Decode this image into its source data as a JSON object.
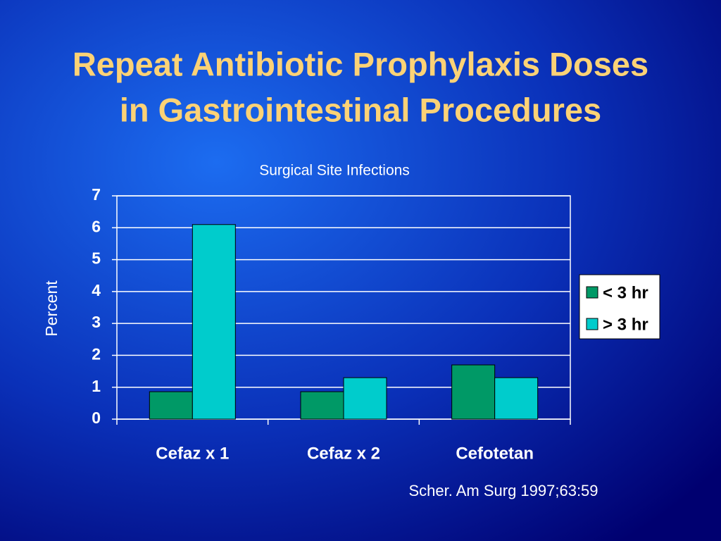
{
  "chart_data": {
    "type": "bar",
    "title": [
      "Repeat Antibiotic Prophylaxis Doses",
      "in Gastrointestinal Procedures"
    ],
    "subtitle": "Surgical Site Infections",
    "y_label": "Percent",
    "annotation": "Scher. Am Surg 1997;63:59",
    "categories": [
      "Cefaz x 1",
      "Cefaz x 2",
      "Cefotetan"
    ],
    "series": [
      {
        "name": "< 3 hr",
        "color": "#009966",
        "values": [
          0.86,
          0.86,
          1.7
        ]
      },
      {
        "name": "> 3 hr",
        "color": "#00cccc",
        "values": [
          6.1,
          1.3,
          1.3
        ]
      }
    ],
    "ylim": [
      0,
      7
    ],
    "yticks": [
      0,
      1,
      2,
      3,
      4,
      5,
      6,
      7
    ],
    "grid": true,
    "legend": "right"
  }
}
